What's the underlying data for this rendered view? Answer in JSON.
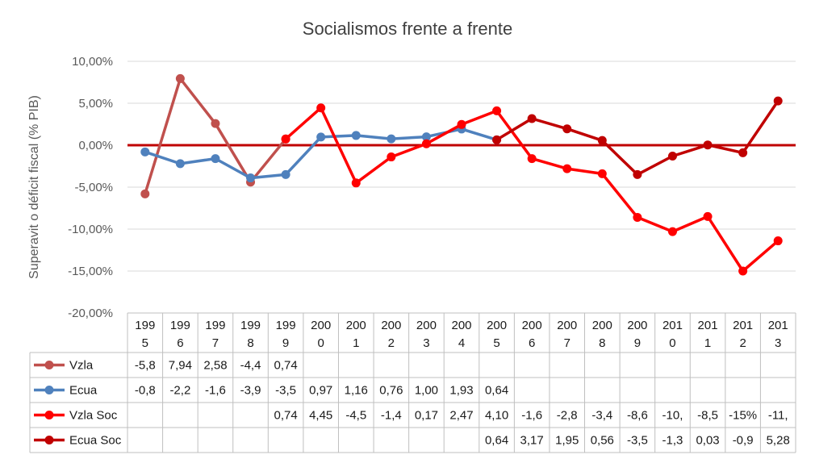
{
  "chart_data": {
    "type": "line",
    "title": "Socialismos frente a frente",
    "ylabel": "Superavit o déficit fiscal (% PIB)",
    "ylim": [
      -20,
      10
    ],
    "yticks": [
      10,
      5,
      0,
      -5,
      -10,
      -15,
      -20
    ],
    "ytick_labels": [
      "10,00%",
      "5,00%",
      "0,00%",
      "-5,00%",
      "-10,00%",
      "-15,00%",
      "-20,00%"
    ],
    "categories": [
      "1995",
      "1996",
      "1997",
      "1998",
      "1999",
      "2000",
      "2001",
      "2002",
      "2003",
      "2004",
      "2005",
      "2006",
      "2007",
      "2008",
      "2009",
      "2010",
      "2011",
      "2012",
      "2013"
    ],
    "category_labels": [
      [
        "199",
        "5"
      ],
      [
        "199",
        "6"
      ],
      [
        "199",
        "7"
      ],
      [
        "199",
        "8"
      ],
      [
        "199",
        "9"
      ],
      [
        "200",
        "0"
      ],
      [
        "200",
        "1"
      ],
      [
        "200",
        "2"
      ],
      [
        "200",
        "3"
      ],
      [
        "200",
        "4"
      ],
      [
        "200",
        "5"
      ],
      [
        "200",
        "6"
      ],
      [
        "200",
        "7"
      ],
      [
        "200",
        "8"
      ],
      [
        "200",
        "9"
      ],
      [
        "201",
        "0"
      ],
      [
        "201",
        "1"
      ],
      [
        "201",
        "2"
      ],
      [
        "201",
        "3"
      ]
    ],
    "zero_line_color": "#c00000",
    "grid": true,
    "legend": "data-table",
    "series": [
      {
        "name": "Vzla",
        "color": "#c0504d",
        "values": [
          -5.8,
          7.94,
          2.58,
          -4.4,
          0.74,
          null,
          null,
          null,
          null,
          null,
          null,
          null,
          null,
          null,
          null,
          null,
          null,
          null,
          null
        ],
        "table_labels": [
          "-5,8",
          "7,94",
          "2,58",
          "-4,4",
          "0,74",
          "",
          "",
          "",
          "",
          "",
          "",
          "",
          "",
          "",
          "",
          "",
          "",
          "",
          ""
        ]
      },
      {
        "name": "Ecua",
        "color": "#4f81bd",
        "values": [
          -0.8,
          -2.2,
          -1.6,
          -3.9,
          -3.5,
          0.97,
          1.16,
          0.76,
          1.0,
          1.93,
          0.64,
          null,
          null,
          null,
          null,
          null,
          null,
          null,
          null
        ],
        "table_labels": [
          "-0,8",
          "-2,2",
          "-1,6",
          "-3,9",
          "-3,5",
          "0,97",
          "1,16",
          "0,76",
          "1,00",
          "1,93",
          "0,64",
          "",
          "",
          "",
          "",
          "",
          "",
          "",
          ""
        ]
      },
      {
        "name": "Vzla Soc",
        "color": "#ff0000",
        "values": [
          null,
          null,
          null,
          null,
          0.74,
          4.45,
          -4.5,
          -1.4,
          0.17,
          2.47,
          4.1,
          -1.6,
          -2.8,
          -3.4,
          -8.6,
          -10.3,
          -8.5,
          -15.0,
          -11.4
        ],
        "table_labels": [
          "",
          "",
          "",
          "",
          "0,74",
          "4,45",
          "-4,5",
          "-1,4",
          "0,17",
          "2,47",
          "4,10",
          "-1,6",
          "-2,8",
          "-3,4",
          "-8,6",
          "-10,",
          "-8,5",
          "-15%",
          "-11,"
        ]
      },
      {
        "name": "Ecua Soc",
        "color": "#c00000",
        "values": [
          null,
          null,
          null,
          null,
          null,
          null,
          null,
          null,
          null,
          null,
          0.64,
          3.17,
          1.95,
          0.56,
          -3.5,
          -1.3,
          0.03,
          -0.9,
          5.28
        ],
        "table_labels": [
          "",
          "",
          "",
          "",
          "",
          "",
          "",
          "",
          "",
          "",
          "0,64",
          "3,17",
          "1,95",
          "0,56",
          "-3,5",
          "-1,3",
          "0,03",
          "-0,9",
          "5,28"
        ]
      }
    ]
  }
}
